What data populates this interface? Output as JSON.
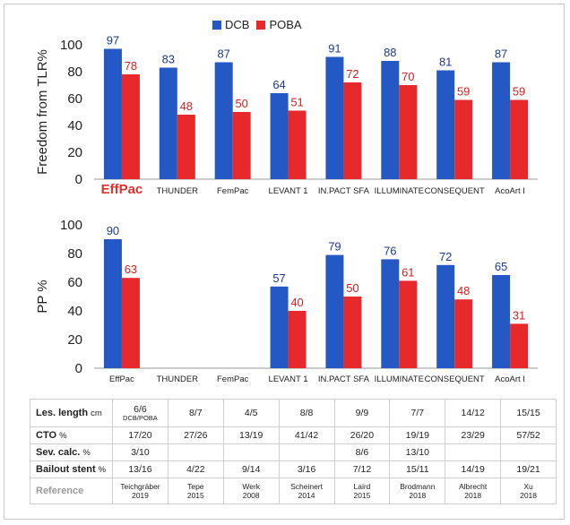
{
  "colors": {
    "dcb": "#2458c5",
    "poba": "#e8292b",
    "dcb_label": "#1e3a8a",
    "poba_label": "#d41f1f",
    "effpac_label": "#e0302a"
  },
  "legend": {
    "dcb": "DCB",
    "poba": "POBA"
  },
  "chart_data": [
    {
      "type": "bar",
      "ylabel": "Freedom from TLR%",
      "ylim": [
        0,
        100
      ],
      "yticks": [
        "0",
        "20",
        "40",
        "60",
        "80",
        "100"
      ],
      "categories": [
        "EffPac",
        "THUNDER",
        "FemPac",
        "LEVANT 1",
        "IN.PACT SFA",
        "ILLUMINATE",
        "CONSEQUENT",
        "AcoArt I"
      ],
      "series": [
        {
          "name": "DCB",
          "values": [
            97,
            83,
            87,
            64,
            91,
            88,
            81,
            87
          ]
        },
        {
          "name": "POBA",
          "values": [
            78,
            48,
            50,
            51,
            72,
            70,
            59,
            59
          ]
        }
      ]
    },
    {
      "type": "bar",
      "ylabel": "PP %",
      "ylim": [
        0,
        100
      ],
      "yticks": [
        "0",
        "20",
        "40",
        "60",
        "80",
        "100"
      ],
      "categories": [
        "EffPac",
        "THUNDER",
        "FemPac",
        "LEVANT 1",
        "IN.PACT SFA",
        "ILLUMINATE",
        "CONSEQUENT",
        "AcoArt I"
      ],
      "series": [
        {
          "name": "DCB",
          "values": [
            90,
            null,
            null,
            57,
            79,
            76,
            72,
            65
          ]
        },
        {
          "name": "POBA",
          "values": [
            63,
            null,
            null,
            40,
            50,
            61,
            48,
            31
          ]
        }
      ]
    }
  ],
  "table": {
    "rows": [
      {
        "key": "len",
        "label": "Les. length",
        "unit": "cm",
        "cells": [
          "6/6",
          "8/7",
          "4/5",
          "8/8",
          "9/9",
          "7/7",
          "14/12",
          "15/15"
        ],
        "first_sub": "DCB/POBA"
      },
      {
        "key": "cto",
        "label": "CTO",
        "unit": "%",
        "cells": [
          "17/20",
          "27/26",
          "13/19",
          "41/42",
          "26/20",
          "19/19",
          "23/29",
          "57/52"
        ]
      },
      {
        "key": "sev",
        "label": "Sev. calc.",
        "unit": "%",
        "cells": [
          "3/10",
          "",
          "",
          "",
          "8/6",
          "13/10",
          "",
          ""
        ]
      },
      {
        "key": "bail",
        "label": "Bailout stent",
        "unit": "%",
        "cells": [
          "13/16",
          "4/22",
          "9/14",
          "3/16",
          "7/12",
          "15/11",
          "14/19",
          "19/21"
        ]
      }
    ],
    "reference": {
      "label": "Reference",
      "authors": [
        "Teichgräber",
        "Tepe",
        "Werk",
        "Scheinert",
        "Laird",
        "Brodmann",
        "Albrecht",
        "Xu"
      ],
      "years": [
        "2019",
        "2015",
        "2008",
        "2014",
        "2015",
        "2018",
        "2018",
        "2018"
      ]
    }
  }
}
